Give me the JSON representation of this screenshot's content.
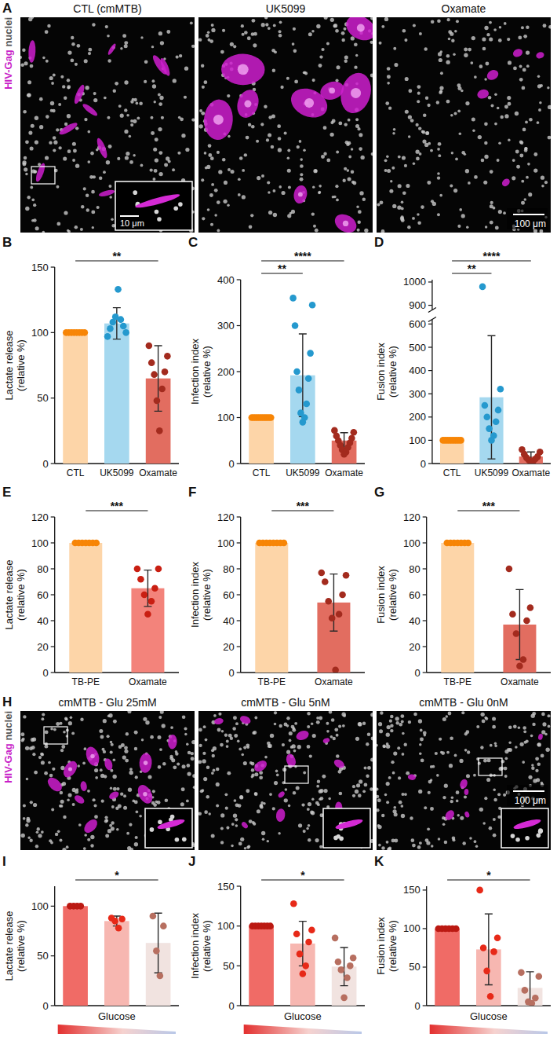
{
  "image_panels": [
    {
      "panel": "A",
      "channels": [
        "HIV-Gag",
        "nuclei"
      ],
      "images": [
        {
          "title": "CTL (cmMTB)",
          "inset_scale": "10 μm"
        },
        {
          "title": "UK5099"
        },
        {
          "title": "Oxamate",
          "scale": "100 μm"
        }
      ]
    },
    {
      "panel": "H",
      "channels": [
        "HIV-Gag",
        "nuclei"
      ],
      "images": [
        {
          "title": "cmMTB - Glu 25mM"
        },
        {
          "title": "cmMTB - Glu 5nM"
        },
        {
          "title": "cmMTB - Glu 0nM",
          "scale": "100 μm"
        }
      ]
    }
  ],
  "chart_data": [
    {
      "panel": "B",
      "type": "bar",
      "y_label": "Lactate release (relative %)",
      "categories": [
        "CTL",
        "UK5099",
        "Oxamate"
      ],
      "values": [
        100,
        107,
        65
      ],
      "errors": [
        0,
        12,
        25
      ],
      "points": [
        [
          100,
          100,
          100,
          100,
          100,
          100,
          100,
          100
        ],
        [
          97,
          100,
          103,
          105,
          108,
          110,
          112,
          133
        ],
        [
          90,
          82,
          77,
          70,
          68,
          57,
          48,
          25
        ]
      ],
      "colors": [
        "#fdd5a8",
        "#a5d8ef",
        "#e26d60"
      ],
      "ylim": [
        0,
        150
      ],
      "yticks": [
        0,
        50,
        100,
        150
      ],
      "annotations": [
        {
          "text": "**",
          "from": 0,
          "to": 2
        }
      ]
    },
    {
      "panel": "C",
      "type": "bar",
      "y_label": "Infection index (relative %)",
      "categories": [
        "CTL",
        "UK5099",
        "Oxamate"
      ],
      "values": [
        100,
        192,
        50
      ],
      "errors": [
        0,
        90,
        17
      ],
      "points": [
        [
          100,
          100,
          100,
          100,
          100,
          100,
          100,
          100,
          100,
          100,
          100
        ],
        [
          360,
          345,
          300,
          240,
          200,
          185,
          160,
          130,
          110,
          100,
          90
        ],
        [
          72,
          68,
          60,
          55,
          50,
          45,
          40,
          35,
          30,
          25,
          20
        ]
      ],
      "colors": [
        "#fdd5a8",
        "#a5d8ef",
        "#e26d60"
      ],
      "ylim": [
        0,
        400
      ],
      "yticks": [
        0,
        100,
        200,
        300,
        400
      ],
      "annotations": [
        {
          "text": "**",
          "from": 0,
          "to": 1
        },
        {
          "text": "****",
          "from": 0,
          "to": 2
        }
      ]
    },
    {
      "panel": "D",
      "type": "bar",
      "y_label": "Fusion index (relative %)",
      "categories": [
        "CTL",
        "UK5099",
        "Oxamate"
      ],
      "values": [
        100,
        285,
        30
      ],
      "errors": [
        0,
        265,
        20
      ],
      "points": [
        [
          100,
          100,
          100,
          100,
          100,
          100,
          100,
          100,
          100
        ],
        [
          980,
          320,
          250,
          230,
          200,
          180,
          150,
          120,
          100
        ],
        [
          60,
          50,
          40,
          30,
          25,
          20,
          15,
          10,
          5
        ]
      ],
      "colors": [
        "#fdd5a8",
        "#a5d8ef",
        "#e26d60"
      ],
      "ylim": [
        0,
        1010
      ],
      "y_break": [
        620,
        880
      ],
      "yticks": [
        0,
        100,
        200,
        300,
        400,
        500,
        600,
        900,
        1000
      ],
      "annotations": [
        {
          "text": "**",
          "from": 0,
          "to": 1
        },
        {
          "text": "****",
          "from": 0,
          "to": 2
        }
      ]
    },
    {
      "panel": "E",
      "type": "bar",
      "y_label": "Lactate release (relative %)",
      "categories": [
        "TB-PE",
        "Oxamate"
      ],
      "values": [
        100,
        65
      ],
      "errors": [
        0,
        14
      ],
      "points": [
        [
          100,
          100,
          100,
          100,
          100,
          100,
          100
        ],
        [
          80,
          80,
          72,
          65,
          60,
          55,
          45
        ]
      ],
      "colors": [
        "#fdd5a8",
        "#f3837b"
      ],
      "ylim": [
        0,
        120
      ],
      "yticks": [
        0,
        20,
        40,
        60,
        80,
        100,
        120
      ],
      "annotations": [
        {
          "text": "***",
          "from": 0,
          "to": 1
        }
      ]
    },
    {
      "panel": "F",
      "type": "bar",
      "y_label": "Infection index (relative %)",
      "categories": [
        "TB-PE",
        "Oxamate"
      ],
      "values": [
        100,
        54
      ],
      "errors": [
        0,
        22
      ],
      "points": [
        [
          100,
          100,
          100,
          100,
          100,
          100,
          100,
          100
        ],
        [
          77,
          75,
          70,
          60,
          55,
          45,
          42,
          2
        ]
      ],
      "colors": [
        "#fdd5a8",
        "#e26d60"
      ],
      "ylim": [
        0,
        120
      ],
      "yticks": [
        0,
        20,
        40,
        60,
        80,
        100,
        120
      ],
      "annotations": [
        {
          "text": "***",
          "from": 0,
          "to": 1
        }
      ]
    },
    {
      "panel": "G",
      "type": "bar",
      "y_label": "Fusion index (relative %)",
      "categories": [
        "TB-PE",
        "Oxamate"
      ],
      "values": [
        100,
        37
      ],
      "errors": [
        0,
        27
      ],
      "points": [
        [
          100,
          100,
          100,
          100,
          100,
          100,
          100
        ],
        [
          80,
          50,
          45,
          40,
          30,
          10,
          5
        ]
      ],
      "colors": [
        "#fdd5a8",
        "#e26d60"
      ],
      "ylim": [
        0,
        120
      ],
      "yticks": [
        0,
        20,
        40,
        60,
        80,
        100,
        120
      ],
      "annotations": [
        {
          "text": "***",
          "from": 0,
          "to": 1
        }
      ]
    },
    {
      "panel": "I",
      "type": "bar",
      "y_label": "Lactate release (relative %)",
      "x_label": "Glucose",
      "categories": [
        null,
        null,
        null
      ],
      "values": [
        100,
        85,
        63
      ],
      "errors": [
        0,
        5,
        30
      ],
      "points": [
        [
          100,
          100,
          100,
          100
        ],
        [
          88,
          87,
          85,
          78
        ],
        [
          90,
          80,
          55,
          30
        ]
      ],
      "colors": [
        "#f06b66",
        "#f7b7b1",
        "#f1e3e0"
      ],
      "ylim": [
        0,
        120
      ],
      "yticks": [
        0,
        50,
        100
      ],
      "annotations": [
        {
          "text": "*",
          "from": 0,
          "to": 2
        }
      ]
    },
    {
      "panel": "J",
      "type": "bar",
      "y_label": "Infection index (relative %)",
      "x_label": "Glucose",
      "categories": [
        null,
        null,
        null
      ],
      "values": [
        100,
        78,
        49
      ],
      "errors": [
        0,
        28,
        24
      ],
      "points": [
        [
          100,
          100,
          100,
          100,
          100,
          100,
          100
        ],
        [
          128,
          95,
          90,
          80,
          65,
          50,
          40
        ],
        [
          85,
          60,
          55,
          50,
          45,
          35,
          10
        ]
      ],
      "colors": [
        "#f06b66",
        "#f7b7b1",
        "#f1e3e0"
      ],
      "ylim": [
        0,
        150
      ],
      "yticks": [
        0,
        50,
        100,
        150
      ],
      "annotations": [
        {
          "text": "*",
          "from": 0,
          "to": 2
        }
      ]
    },
    {
      "panel": "K",
      "type": "bar",
      "y_label": "Fusion index (relative %)",
      "x_label": "Glucose",
      "categories": [
        null,
        null,
        null
      ],
      "values": [
        100,
        73,
        23
      ],
      "errors": [
        0,
        46,
        21
      ],
      "points": [
        [
          100,
          100,
          100,
          100,
          100,
          100
        ],
        [
          150,
          88,
          75,
          70,
          45,
          12
        ],
        [
          43,
          38,
          20,
          10,
          5,
          3
        ]
      ],
      "colors": [
        "#f06b66",
        "#f7b7b1",
        "#f1e3e0"
      ],
      "ylim": [
        0,
        155
      ],
      "yticks": [
        0,
        50,
        100,
        150
      ],
      "annotations": [
        {
          "text": "*",
          "from": 0,
          "to": 2
        }
      ]
    }
  ]
}
